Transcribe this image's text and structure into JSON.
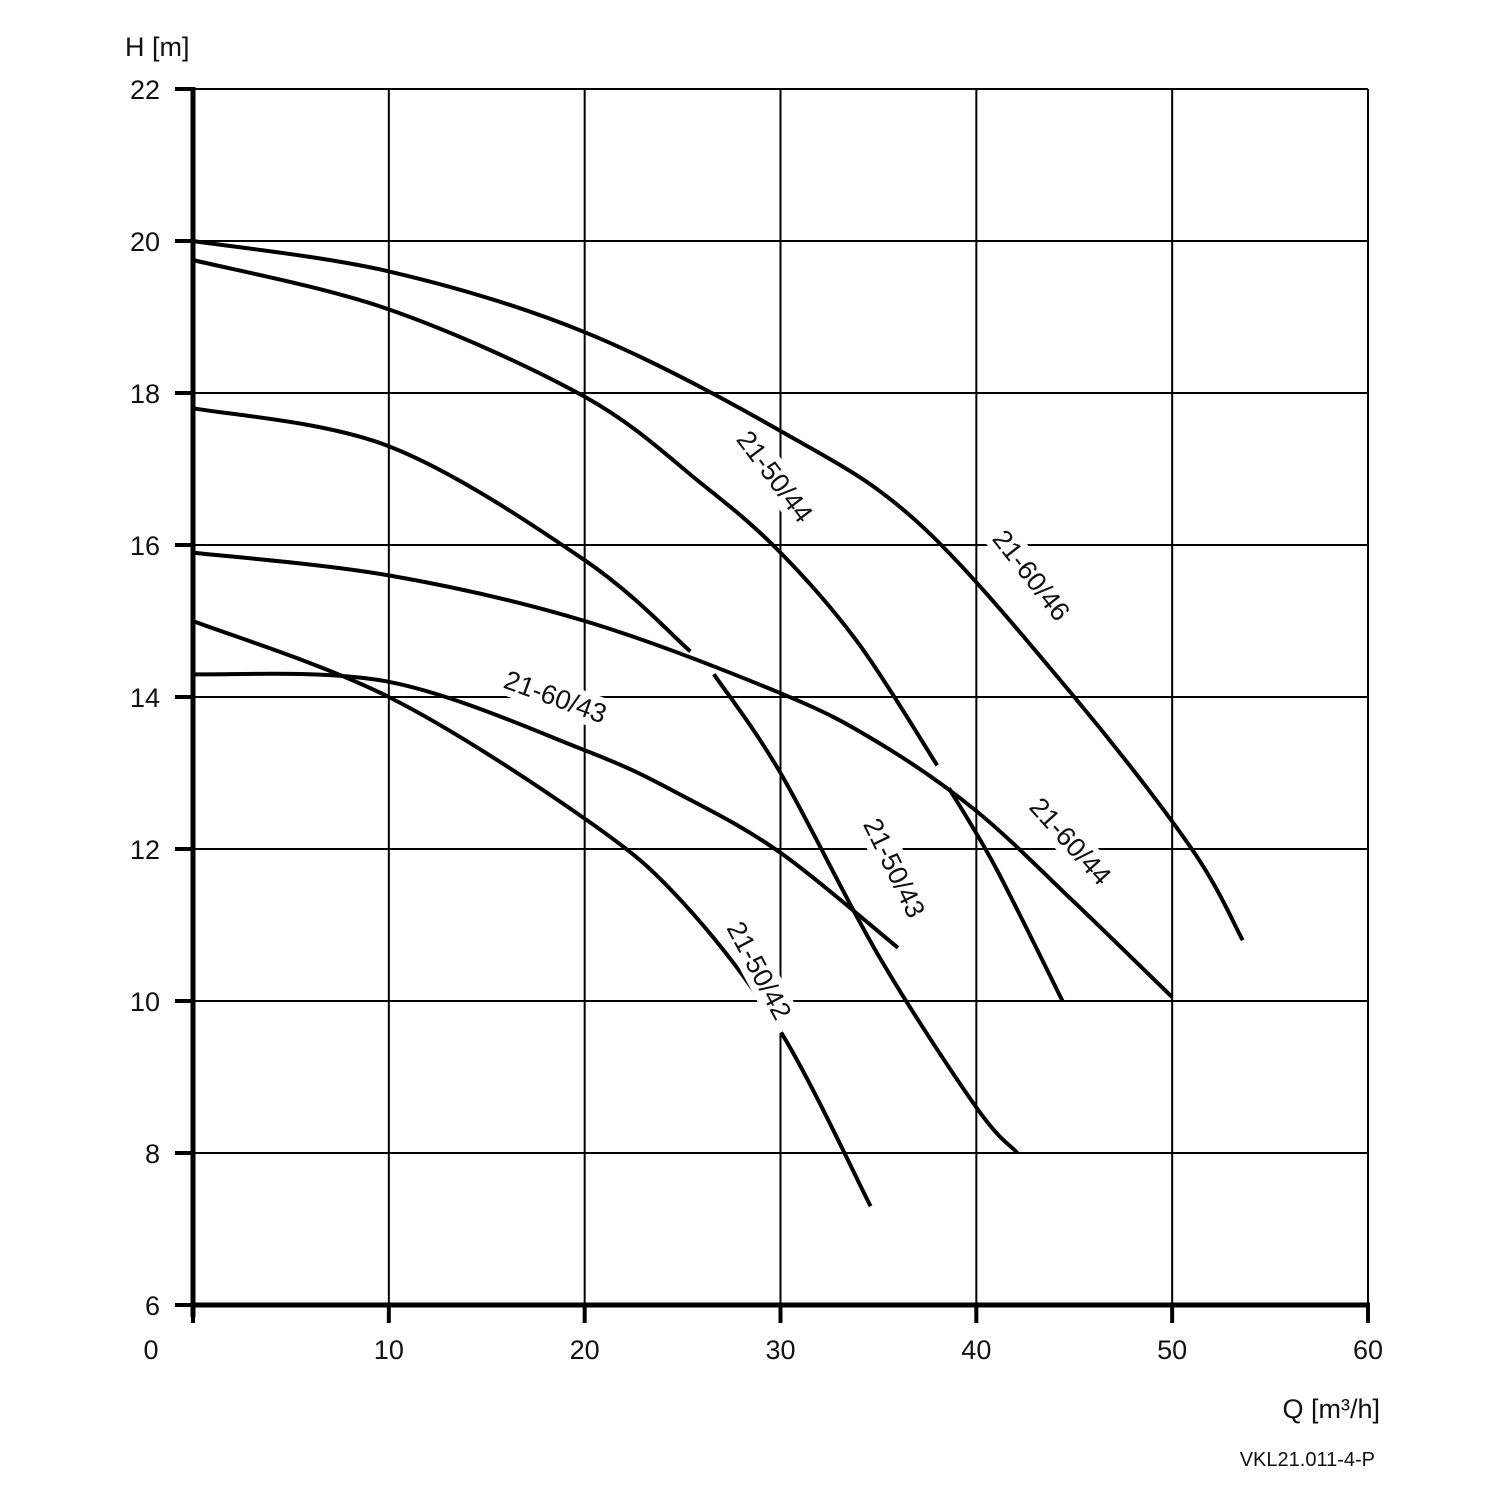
{
  "chart_data": {
    "type": "line",
    "xlabel": "Q [m³/h]",
    "ylabel": "H [m]",
    "figure_code": "VKL21.011-4-P",
    "xlim": [
      0,
      60
    ],
    "ylim": [
      6,
      22
    ],
    "x_ticks": [
      0,
      10,
      20,
      30,
      40,
      50,
      60
    ],
    "x_tick_labels": [
      "0",
      "10",
      "20",
      "30",
      "40",
      "50",
      "60"
    ],
    "y_ticks": [
      6,
      8,
      10,
      12,
      14,
      16,
      18,
      20,
      22
    ],
    "y_tick_labels": [
      "6",
      "8",
      "10",
      "12",
      "14",
      "16",
      "18",
      "20",
      "22"
    ],
    "grid": true,
    "series": [
      {
        "name": "21-60/46",
        "points": [
          [
            0,
            20.0
          ],
          [
            10,
            19.6
          ],
          [
            20,
            18.8
          ],
          [
            30,
            17.5
          ],
          [
            37,
            16.3
          ],
          [
            45,
            14.0
          ],
          [
            51,
            12.0
          ],
          [
            53.6,
            10.8
          ]
        ]
      },
      {
        "name": "21-50/44",
        "points": [
          [
            0,
            19.75
          ],
          [
            10,
            19.1
          ],
          [
            20,
            17.95
          ],
          [
            26,
            16.8
          ],
          [
            30,
            15.9
          ],
          [
            34,
            14.7
          ],
          [
            38,
            13.1
          ]
        ]
      },
      {
        "name": "21-60/44",
        "points": [
          [
            0,
            15.9
          ],
          [
            10,
            15.6
          ],
          [
            20,
            15.0
          ],
          [
            30,
            14.05
          ],
          [
            35,
            13.4
          ],
          [
            40,
            12.5
          ],
          [
            45,
            11.3
          ],
          [
            50,
            10.05
          ]
        ]
      },
      {
        "name": "21-60/43",
        "points": [
          [
            0,
            14.3
          ],
          [
            10,
            14.2
          ],
          [
            20,
            13.3
          ],
          [
            25,
            12.7
          ],
          [
            30,
            11.95
          ],
          [
            36,
            10.7
          ]
        ]
      },
      {
        "name": "21-50/42",
        "points": [
          [
            0,
            15.0
          ],
          [
            10,
            14.0
          ],
          [
            20,
            12.4
          ],
          [
            25,
            11.3
          ],
          [
            30,
            9.6
          ],
          [
            34.6,
            7.3
          ]
        ]
      },
      {
        "name": "",
        "points": [
          [
            0,
            17.8
          ],
          [
            10,
            17.3
          ],
          [
            20,
            15.8
          ],
          [
            25.4,
            14.6
          ]
        ]
      },
      {
        "name": "21-50/43",
        "points": [
          [
            26.6,
            14.3
          ],
          [
            30,
            13.0
          ],
          [
            35,
            10.6
          ],
          [
            40,
            8.6
          ],
          [
            42.1,
            8.0
          ]
        ]
      },
      {
        "name": "",
        "points": [
          [
            38.6,
            12.8
          ],
          [
            41,
            11.75
          ],
          [
            44.4,
            10.0
          ]
        ]
      }
    ],
    "annotations": [
      {
        "text": "21-50/44",
        "x": 29.7,
        "y": 16.9,
        "angle": 53
      },
      {
        "text": "21-60/46",
        "x": 42.8,
        "y": 15.6,
        "angle": 52
      },
      {
        "text": "21-60/43",
        "x": 18.5,
        "y": 14.0,
        "angle": 20
      },
      {
        "text": "21-60/44",
        "x": 44.8,
        "y": 12.1,
        "angle": 48
      },
      {
        "text": "21-50/43",
        "x": 35.8,
        "y": 11.75,
        "angle": 64
      },
      {
        "text": "21-50/42",
        "x": 28.9,
        "y": 10.4,
        "angle": 62
      }
    ]
  }
}
